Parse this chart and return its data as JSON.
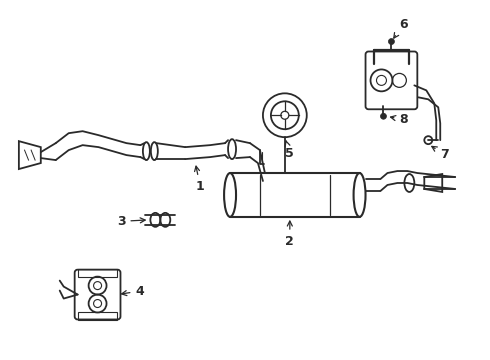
{
  "background_color": "#ffffff",
  "line_color": "#2a2a2a",
  "figsize": [
    4.9,
    3.6
  ],
  "dpi": 100,
  "xlim": [
    0,
    490
  ],
  "ylim": [
    0,
    360
  ]
}
